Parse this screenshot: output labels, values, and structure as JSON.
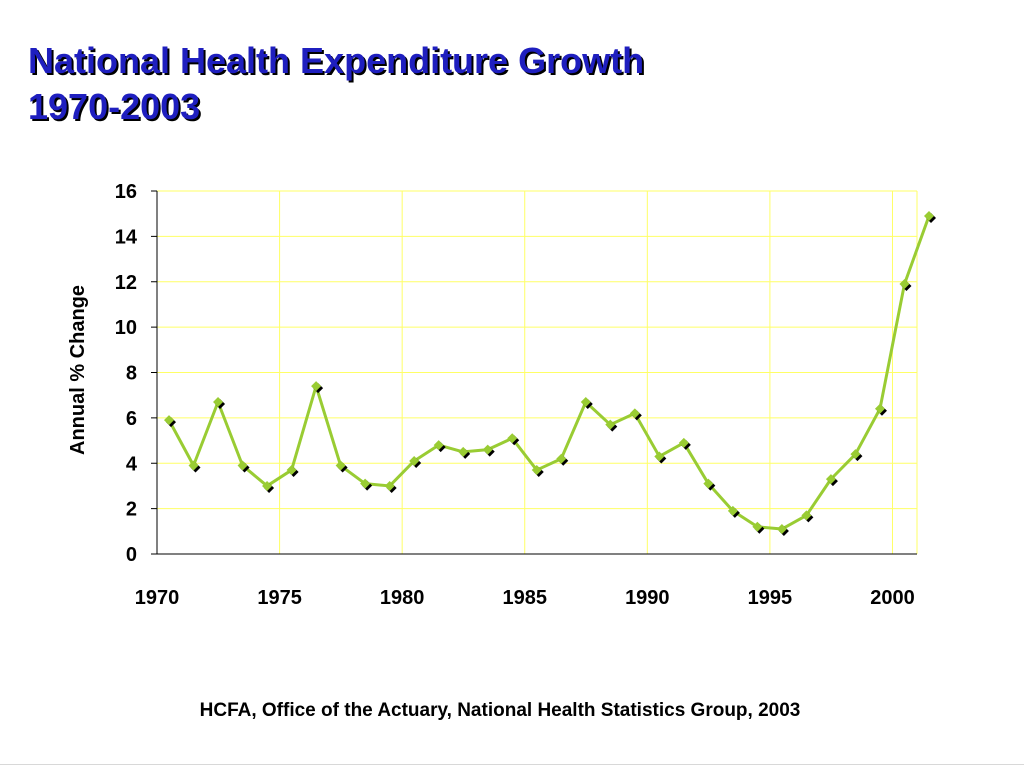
{
  "slide": {
    "title_line1": "National Health Expenditure Growth",
    "title_line2": "1970-2003",
    "source": "HCFA, Office of the Actuary, National Health Statistics Group, 2003"
  },
  "colors": {
    "title": "#1f1fbf",
    "line": "#99cc33",
    "grid": "#ffff66",
    "marker_shadow": "#000000"
  },
  "chart_data": {
    "type": "line",
    "title": "",
    "xlabel": "",
    "ylabel": "Annual % Change",
    "xlim": [
      1970,
      2001
    ],
    "ylim": [
      0,
      16
    ],
    "yticks": [
      0,
      2,
      4,
      6,
      8,
      10,
      12,
      14,
      16
    ],
    "xticks": [
      1970,
      1975,
      1980,
      1985,
      1990,
      1995,
      2000
    ],
    "grid": true,
    "legend": "none",
    "series": [
      {
        "x": [
          1970,
          1971,
          1972,
          1973,
          1974,
          1975,
          1976,
          1977,
          1978,
          1979,
          1980,
          1981,
          1982,
          1983,
          1984,
          1985,
          1986,
          1987,
          1988,
          1989,
          1990,
          1991,
          1992,
          1993,
          1994,
          1995,
          1996,
          1997,
          1998,
          1999,
          2000,
          2001
        ],
        "values": [
          5.9,
          3.9,
          6.7,
          3.9,
          3.0,
          3.7,
          7.4,
          3.9,
          3.1,
          3.0,
          4.1,
          4.8,
          4.5,
          4.6,
          5.1,
          3.7,
          4.2,
          6.7,
          5.7,
          6.2,
          4.3,
          4.9,
          3.1,
          1.9,
          1.2,
          1.1,
          1.7,
          3.3,
          4.4,
          6.4,
          11.9,
          14.9
        ]
      }
    ]
  }
}
